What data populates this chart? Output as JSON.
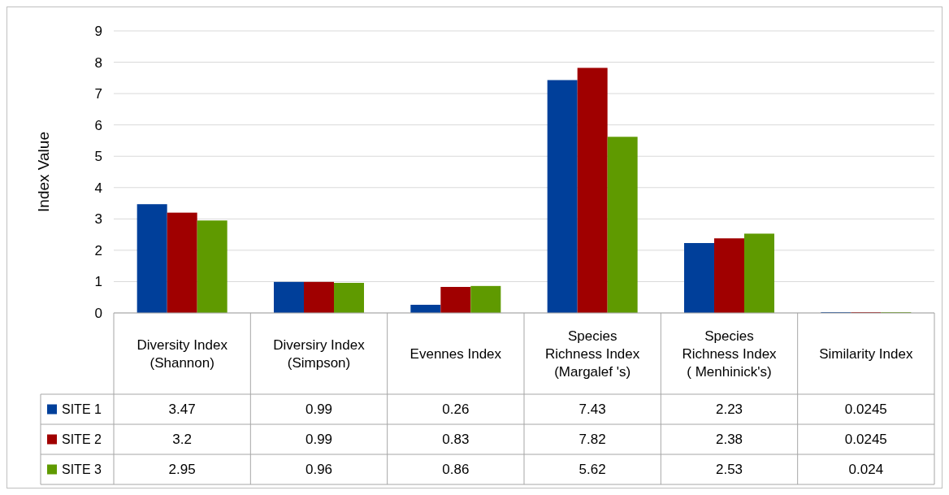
{
  "chart_data": {
    "type": "bar",
    "ylabel": "Index Value",
    "categories": [
      "Diversity Index\n(Shannon)",
      "Diversiry Index\n(Simpson)",
      "Evennes Index",
      "Species\nRichness Index\n(Margalef 's)",
      "Species\nRichness Index\n( Menhinick's)",
      "Similarity Index"
    ],
    "series": [
      {
        "name": "SITE 1",
        "color": "#003f9a",
        "values": [
          3.47,
          0.99,
          0.26,
          7.43,
          2.23,
          0.0245
        ]
      },
      {
        "name": "SITE 2",
        "color": "#a00000",
        "values": [
          3.2,
          0.99,
          0.83,
          7.82,
          2.38,
          0.0245
        ]
      },
      {
        "name": "SITE 3",
        "color": "#5f9a00",
        "values": [
          2.95,
          0.96,
          0.86,
          5.62,
          2.53,
          0.024
        ]
      }
    ],
    "ylim": [
      0,
      9
    ],
    "yticks": [
      0,
      1,
      2,
      3,
      4,
      5,
      6,
      7,
      8,
      9
    ],
    "grid": "y",
    "legend": "bottom",
    "data_labels": true
  }
}
